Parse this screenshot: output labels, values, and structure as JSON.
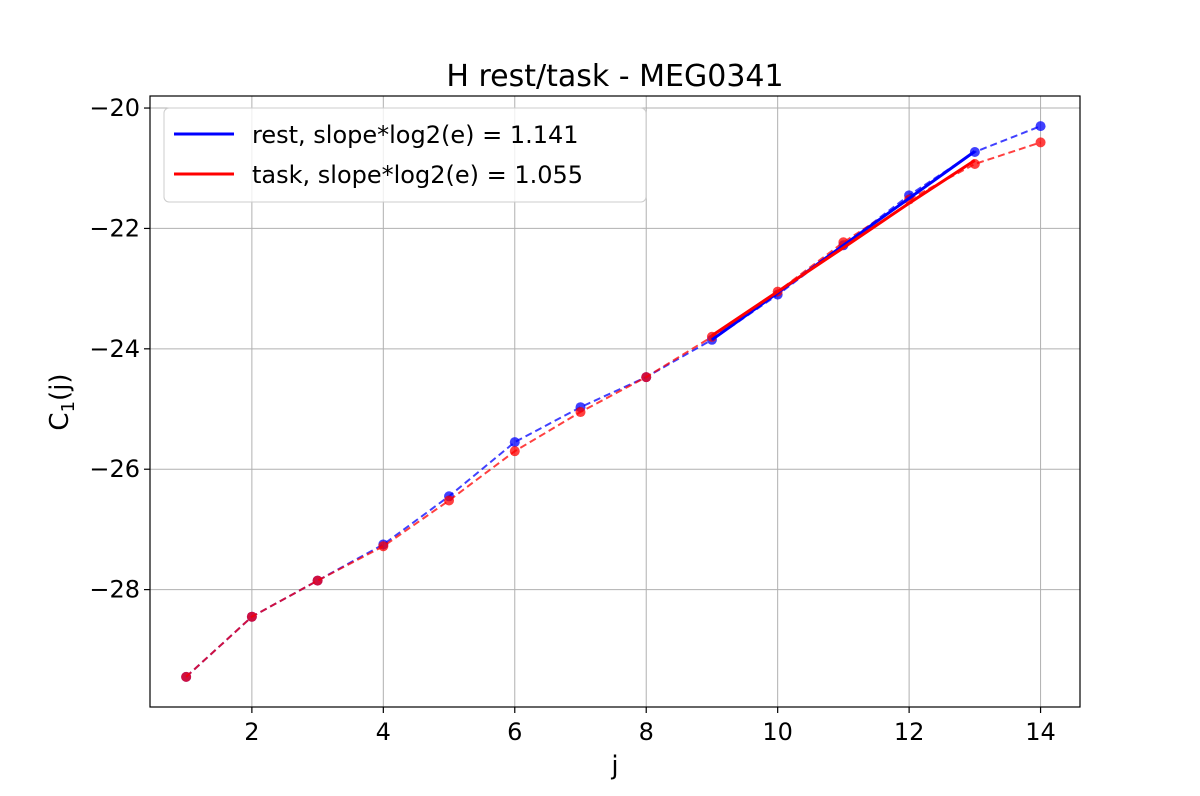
{
  "chart_data": {
    "type": "line",
    "title": "H rest/task - MEG0341",
    "xlabel": "j",
    "ylabel": "C",
    "ylabel_sub": "1",
    "ylabel_suffix": "(j)",
    "xlim": [
      0.45,
      14.6
    ],
    "ylim": [
      -29.95,
      -19.8
    ],
    "xticks": [
      2,
      4,
      6,
      8,
      10,
      12,
      14
    ],
    "yticks": [
      -28,
      -26,
      -24,
      -22,
      -20
    ],
    "ytick_labels": [
      "−28",
      "−26",
      "−24",
      "−22",
      "−20"
    ],
    "grid": true,
    "legend_position": "upper-left",
    "series": [
      {
        "name": "rest",
        "color": "#0000ff",
        "style": "dashed-markers",
        "x": [
          1,
          2,
          3,
          4,
          5,
          6,
          7,
          8,
          9,
          10,
          11,
          12,
          13,
          14
        ],
        "y": [
          -29.45,
          -28.45,
          -27.85,
          -27.25,
          -26.45,
          -25.55,
          -24.97,
          -24.47,
          -23.85,
          -23.1,
          -22.28,
          -21.45,
          -20.73,
          -20.3
        ]
      },
      {
        "name": "task",
        "color": "#ff0000",
        "style": "dashed-markers",
        "x": [
          1,
          2,
          3,
          4,
          5,
          6,
          7,
          8,
          9,
          10,
          11,
          12,
          13,
          14
        ],
        "y": [
          -29.45,
          -28.45,
          -27.85,
          -27.28,
          -26.52,
          -25.7,
          -25.05,
          -24.47,
          -23.8,
          -23.05,
          -22.23,
          -21.52,
          -20.93,
          -20.57
        ]
      }
    ],
    "fits": [
      {
        "label": "rest, slope*log2(e) = 1.141",
        "color": "#0000ff",
        "x": [
          9,
          10,
          11,
          12,
          13
        ],
        "y": [
          -23.85,
          -23.07,
          -22.28,
          -21.5,
          -20.72
        ]
      },
      {
        "label": "task, slope*log2(e) = 1.055",
        "color": "#ff0000",
        "x": [
          9,
          10,
          11,
          12,
          13
        ],
        "y": [
          -23.78,
          -23.05,
          -22.32,
          -21.58,
          -20.87
        ]
      }
    ]
  }
}
